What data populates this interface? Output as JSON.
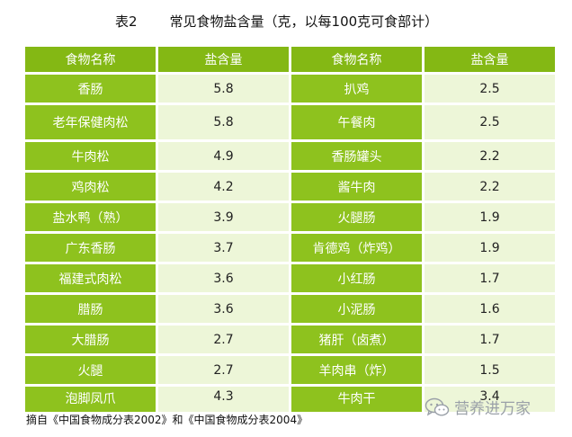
{
  "title": {
    "number": "表2",
    "text": "常见食物盐含量（克，以每100克可食部计）"
  },
  "headers": [
    "食物名称",
    "盐含量",
    "食物名称",
    "盐含量"
  ],
  "rows": [
    {
      "left_name": "香肠",
      "left_value": "5.8",
      "right_name": "扒鸡",
      "right_value": "2.5"
    },
    {
      "left_name": "老年保健肉松",
      "left_value": "5.8",
      "right_name": "午餐肉",
      "right_value": "2.5"
    },
    {
      "left_name": "牛肉松",
      "left_value": "4.9",
      "right_name": "香肠罐头",
      "right_value": "2.2"
    },
    {
      "left_name": "鸡肉松",
      "left_value": "4.2",
      "right_name": "酱牛肉",
      "right_value": "2.2"
    },
    {
      "left_name": "盐水鸭（熟）",
      "left_value": "3.9",
      "right_name": "火腿肠",
      "right_value": "1.9"
    },
    {
      "left_name": "广东香肠",
      "left_value": "3.7",
      "right_name": "肯德鸡（炸鸡）",
      "right_value": "1.9"
    },
    {
      "left_name": "福建式肉松",
      "left_value": "3.6",
      "right_name": "小红肠",
      "right_value": "1.7"
    },
    {
      "left_name": "腊肠",
      "left_value": "3.6",
      "right_name": "小泥肠",
      "right_value": "1.6"
    },
    {
      "left_name": "大腊肠",
      "left_value": "2.7",
      "right_name": "猪肝（卤煮）",
      "right_value": "1.7"
    },
    {
      "left_name": "火腿",
      "left_value": "2.7",
      "right_name": "羊肉串（炸）",
      "right_value": "1.5"
    },
    {
      "left_name": "泡脚凤爪",
      "left_value": "4.3",
      "right_name": "牛肉干",
      "right_value": "3.4"
    }
  ],
  "source": "摘自《中国食物成分表2002》和《中国食物成分表2004》",
  "watermark": {
    "text": "营养进万家",
    "icon": "wechat-icon"
  },
  "colors": {
    "header": "#84b814",
    "name_cell": "#8ec21e",
    "value_cell": "#edf6d8"
  }
}
